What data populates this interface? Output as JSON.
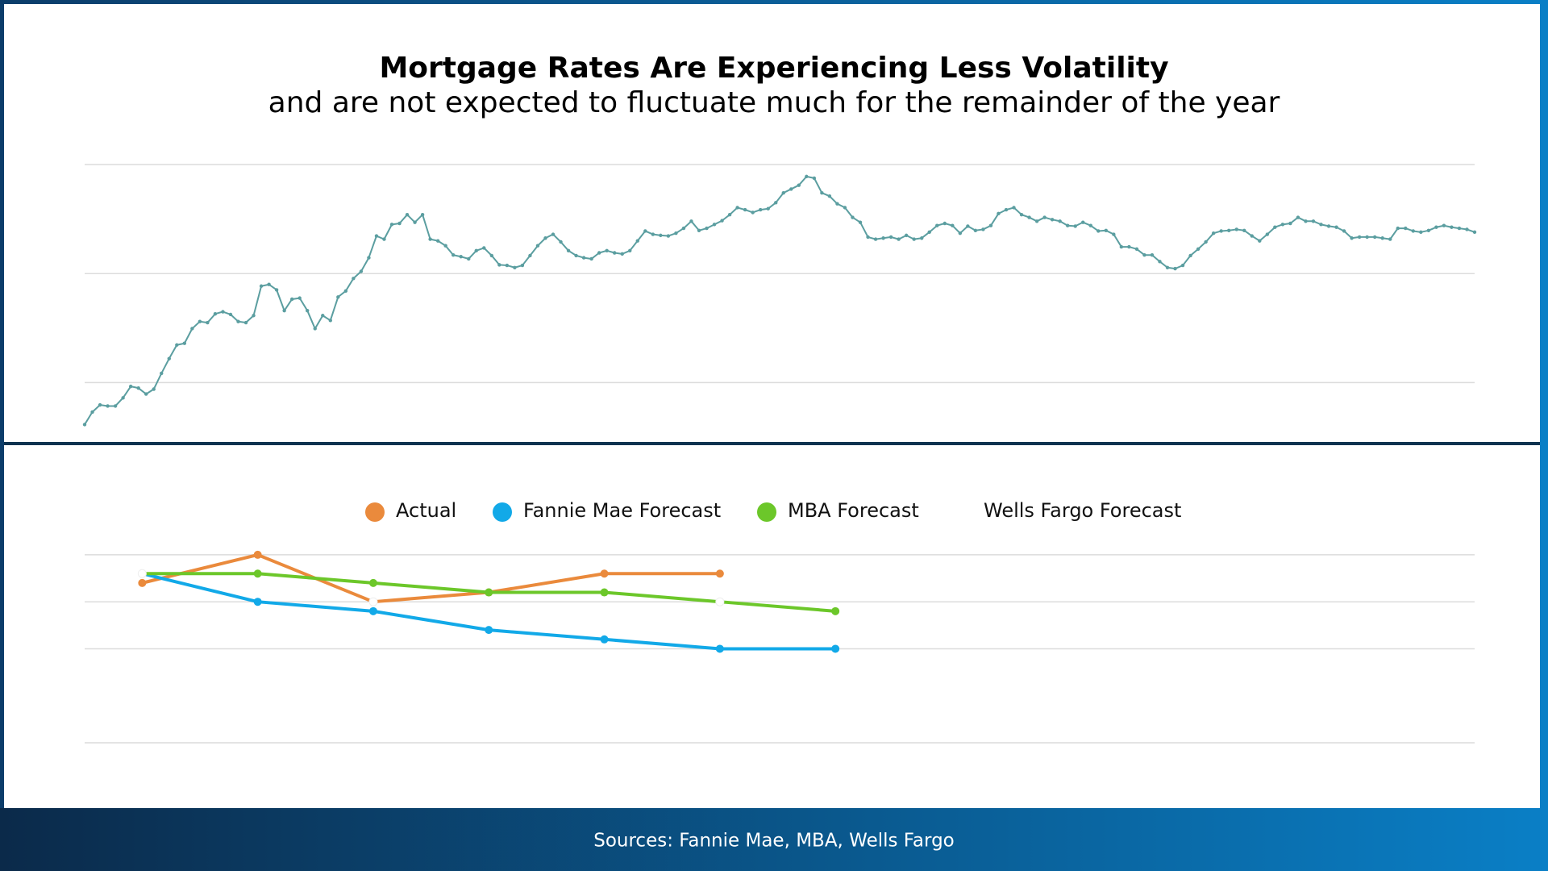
{
  "header": {
    "title": "Mortgage Rates Are Experiencing Less Volatility",
    "subtitle": "and are not expected to fluctuate much for the remainder of the year"
  },
  "footer": {
    "source": "Sources: Fannie Mae, MBA, Wells Fargo"
  },
  "chart_data": [
    {
      "type": "line",
      "color": "#5b9ea0",
      "ylim": [
        3,
        8
      ],
      "yticks": [
        4,
        6,
        8
      ],
      "grid": true,
      "values": [
        3.23,
        3.46,
        3.59,
        3.57,
        3.57,
        3.72,
        3.93,
        3.9,
        3.79,
        3.88,
        4.17,
        4.44,
        4.69,
        4.72,
        4.99,
        5.12,
        5.1,
        5.26,
        5.3,
        5.25,
        5.12,
        5.1,
        5.23,
        5.77,
        5.8,
        5.7,
        5.32,
        5.53,
        5.55,
        5.32,
        4.99,
        5.23,
        5.14,
        5.57,
        5.68,
        5.91,
        6.04,
        6.29,
        6.69,
        6.63,
        6.9,
        6.92,
        7.08,
        6.94,
        7.08,
        6.63,
        6.6,
        6.51,
        6.34,
        6.31,
        6.27,
        6.42,
        6.47,
        6.33,
        6.16,
        6.15,
        6.11,
        6.15,
        6.33,
        6.51,
        6.65,
        6.72,
        6.58,
        6.42,
        6.33,
        6.29,
        6.27,
        6.38,
        6.42,
        6.38,
        6.36,
        6.42,
        6.6,
        6.78,
        6.72,
        6.7,
        6.69,
        6.74,
        6.83,
        6.96,
        6.79,
        6.83,
        6.9,
        6.97,
        7.08,
        7.21,
        7.17,
        7.12,
        7.17,
        7.19,
        7.3,
        7.48,
        7.55,
        7.62,
        7.78,
        7.75,
        7.48,
        7.42,
        7.28,
        7.21,
        7.03,
        6.94,
        6.67,
        6.63,
        6.65,
        6.67,
        6.63,
        6.7,
        6.63,
        6.65,
        6.76,
        6.88,
        6.92,
        6.88,
        6.74,
        6.87,
        6.79,
        6.81,
        6.88,
        7.1,
        7.17,
        7.21,
        7.08,
        7.03,
        6.96,
        7.03,
        6.99,
        6.96,
        6.88,
        6.87,
        6.94,
        6.88,
        6.78,
        6.79,
        6.72,
        6.49,
        6.49,
        6.45,
        6.34,
        6.34,
        6.22,
        6.11,
        6.09,
        6.15,
        6.33,
        6.45,
        6.58,
        6.74,
        6.78,
        6.79,
        6.81,
        6.79,
        6.69,
        6.6,
        6.72,
        6.85,
        6.9,
        6.92,
        7.03,
        6.96,
        6.96,
        6.9,
        6.87,
        6.85,
        6.78,
        6.65,
        6.67,
        6.67,
        6.67,
        6.65,
        6.63,
        6.83,
        6.83,
        6.78,
        6.76,
        6.79,
        6.85,
        6.88,
        6.85,
        6.83,
        6.81,
        6.76
      ]
    },
    {
      "type": "line",
      "ylim": [
        6,
        7.33
      ],
      "yticks": [
        6,
        6.5,
        6.75,
        7
      ],
      "grid": true,
      "legend": "top",
      "series": [
        {
          "name": "Actual",
          "color": "#ea8a3c",
          "values": [
            6.85,
            7.0,
            6.75,
            6.8,
            6.9,
            6.9,
            null
          ]
        },
        {
          "name": "Fannie Mae Forecast",
          "color": "#12a9e8",
          "values": [
            6.9,
            6.75,
            6.7,
            6.6,
            6.55,
            6.5,
            6.5
          ]
        },
        {
          "name": "MBA Forecast",
          "color": "#6cc72a",
          "values": [
            6.9,
            6.9,
            6.85,
            6.8,
            6.8,
            6.75,
            6.7
          ]
        },
        {
          "name": "Wells Fargo Forecast",
          "color": "#ffffff",
          "values": [
            6.9,
            null,
            6.75,
            null,
            null,
            6.75,
            null
          ]
        }
      ]
    }
  ]
}
